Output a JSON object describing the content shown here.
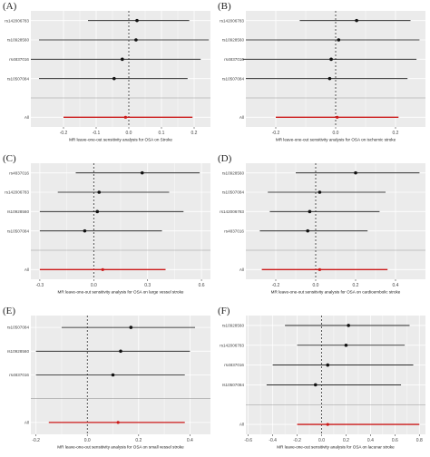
{
  "chart_data": [
    {
      "panel_label": "(A)",
      "type": "forest",
      "xlabel": "MR leave-one-out sensitivity analysis for OSA on Stroke",
      "xlim": [
        -0.3,
        0.25
      ],
      "xticks": [
        -0.2,
        -0.1,
        0.0,
        0.1,
        0.2
      ],
      "xtick_labels": [
        "-0.2",
        "-0.1",
        "0.0",
        "0.1",
        "0.2"
      ],
      "snps": [
        {
          "label": "rs142006783",
          "estimate": 0.025,
          "lower": -0.125,
          "upper": 0.185
        },
        {
          "label": "rs10928560",
          "estimate": 0.022,
          "lower": -0.275,
          "upper": 0.245
        },
        {
          "label": "rs4837016",
          "estimate": -0.02,
          "lower": -0.3,
          "upper": 0.22
        },
        {
          "label": "rs10507084",
          "estimate": -0.045,
          "lower": -0.275,
          "upper": 0.18
        }
      ],
      "all": {
        "label": "All",
        "estimate": -0.01,
        "lower": -0.2,
        "upper": 0.195
      }
    },
    {
      "panel_label": "(B)",
      "type": "forest",
      "xlabel": "MR leave-one-out sensitivity analysis for OSA on ischemic stroke",
      "xlim": [
        -0.3,
        0.3
      ],
      "xticks": [
        -0.2,
        0.0,
        0.2
      ],
      "xtick_labels": [
        "-0.2",
        "0.0",
        "0.2"
      ],
      "snps": [
        {
          "label": "rs142006783",
          "estimate": 0.07,
          "lower": -0.12,
          "upper": 0.25
        },
        {
          "label": "rs10928560",
          "estimate": 0.01,
          "lower": -0.3,
          "upper": 0.28
        },
        {
          "label": "rs4837016",
          "estimate": -0.015,
          "lower": -0.31,
          "upper": 0.27
        },
        {
          "label": "rs10507084",
          "estimate": -0.02,
          "lower": -0.3,
          "upper": 0.24
        }
      ],
      "all": {
        "label": "All",
        "estimate": 0.005,
        "lower": -0.2,
        "upper": 0.21
      }
    },
    {
      "panel_label": "(C)",
      "type": "forest",
      "xlabel": "MR leave-one-out sensitivity analysis for OSA on large vessel stroke",
      "xlim": [
        -0.35,
        0.65
      ],
      "xticks": [
        -0.3,
        0.0,
        0.3,
        0.6
      ],
      "xtick_labels": [
        "-0.3",
        "0.0",
        "0.3",
        "0.6"
      ],
      "snps": [
        {
          "label": "rs4837016",
          "estimate": 0.27,
          "lower": -0.1,
          "upper": 0.59
        },
        {
          "label": "rs142006783",
          "estimate": 0.03,
          "lower": -0.2,
          "upper": 0.42
        },
        {
          "label": "rs10928560",
          "estimate": 0.02,
          "lower": -0.3,
          "upper": 0.5
        },
        {
          "label": "rs10507084",
          "estimate": -0.05,
          "lower": -0.3,
          "upper": 0.38
        }
      ],
      "all": {
        "label": "All",
        "estimate": 0.05,
        "lower": -0.3,
        "upper": 0.4
      }
    },
    {
      "panel_label": "(D)",
      "type": "forest",
      "xlabel": "MR leave-one-out sensitivity analysis for OSA on cardioembolic stroke",
      "xlim": [
        -0.35,
        0.55
      ],
      "xticks": [
        -0.2,
        0.0,
        0.2,
        0.4
      ],
      "xtick_labels": [
        "-0.2",
        "0.0",
        "0.2",
        "0.4"
      ],
      "snps": [
        {
          "label": "rs10928560",
          "estimate": 0.2,
          "lower": -0.1,
          "upper": 0.52
        },
        {
          "label": "rs10507084",
          "estimate": 0.02,
          "lower": -0.24,
          "upper": 0.35
        },
        {
          "label": "rs142006783",
          "estimate": -0.03,
          "lower": -0.23,
          "upper": 0.32
        },
        {
          "label": "rs4837016",
          "estimate": -0.04,
          "lower": -0.28,
          "upper": 0.26
        }
      ],
      "all": {
        "label": "All",
        "estimate": 0.02,
        "lower": -0.27,
        "upper": 0.36
      }
    },
    {
      "panel_label": "(E)",
      "type": "forest",
      "xlabel": "MR leave-one-out sensitivity analysis for OSA on small vessel stroke",
      "xlim": [
        -0.22,
        0.48
      ],
      "xticks": [
        -0.2,
        0.0,
        0.2,
        0.4
      ],
      "xtick_labels": [
        "-0.2",
        "0.0",
        "0.2",
        "0.4"
      ],
      "snps": [
        {
          "label": "rs10507084",
          "estimate": 0.17,
          "lower": -0.1,
          "upper": 0.42
        },
        {
          "label": "rs10928560",
          "estimate": 0.13,
          "lower": -0.2,
          "upper": 0.4
        },
        {
          "label": "rs4837016",
          "estimate": 0.1,
          "lower": -0.2,
          "upper": 0.38
        }
      ],
      "all": {
        "label": "All",
        "estimate": 0.12,
        "lower": -0.15,
        "upper": 0.38
      }
    },
    {
      "panel_label": "(F)",
      "type": "forest",
      "xlabel": "MR leave-one-out sensitivity analysis for OSA on lacunar stroke",
      "xlim": [
        -0.62,
        0.85
      ],
      "xticks": [
        -0.6,
        -0.4,
        -0.2,
        0.0,
        0.2,
        0.4,
        0.6,
        0.8
      ],
      "xtick_labels": [
        "-0.6",
        "-0.4",
        "-0.2",
        "0.0",
        "0.2",
        "0.4",
        "0.6",
        "0.8"
      ],
      "snps": [
        {
          "label": "rs10928560",
          "estimate": 0.22,
          "lower": -0.3,
          "upper": 0.72
        },
        {
          "label": "rs142006783",
          "estimate": 0.2,
          "lower": -0.2,
          "upper": 0.68
        },
        {
          "label": "rs4837016",
          "estimate": 0.05,
          "lower": -0.4,
          "upper": 0.75
        },
        {
          "label": "rs10507084",
          "estimate": -0.05,
          "lower": -0.45,
          "upper": 0.65
        }
      ],
      "all": {
        "label": "All",
        "estimate": 0.05,
        "lower": -0.2,
        "upper": 0.8
      }
    }
  ],
  "colors": {
    "panel_bg": "#ebebeb",
    "grid": "#ffffff",
    "point": "#111111",
    "all_line": "#cc1a1a",
    "ref_line": "#111111",
    "text": "#444444"
  }
}
